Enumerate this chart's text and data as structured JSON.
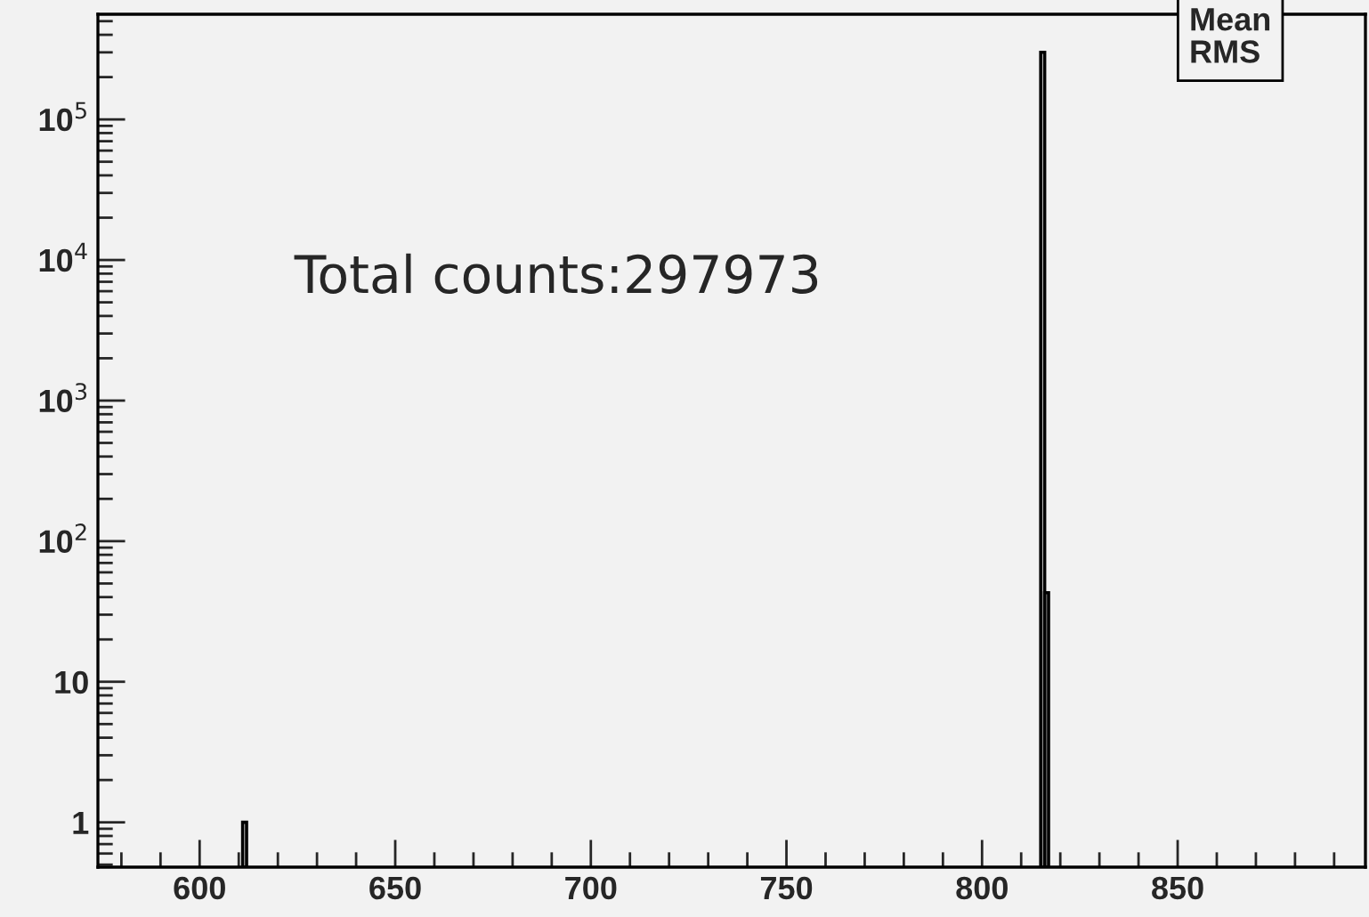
{
  "chart_data": {
    "type": "histogram",
    "bins": [
      611,
      612,
      815,
      816,
      817
    ],
    "values": [
      1,
      null,
      300000,
      43
    ],
    "color": "#000000",
    "log": "y",
    "xlim": [
      574,
      898
    ],
    "xticks": [
      600,
      650,
      700,
      750,
      800,
      850,
      {
        "value": 580,
        "label": null
      },
      {
        "value": 590,
        "label": null
      },
      {
        "value": 610,
        "label": null
      },
      {
        "value": 620,
        "label": null
      },
      {
        "value": 630,
        "label": null
      },
      {
        "value": 640,
        "label": null
      },
      {
        "value": 660,
        "label": null
      },
      {
        "value": 670,
        "label": null
      },
      {
        "value": 680,
        "label": null
      },
      {
        "value": 690,
        "label": null
      },
      {
        "value": 710,
        "label": null
      },
      {
        "value": 720,
        "label": null
      },
      {
        "value": 730,
        "label": null
      },
      {
        "value": 740,
        "label": null
      },
      {
        "value": 760,
        "label": null
      },
      {
        "value": 770,
        "label": null
      },
      {
        "value": 780,
        "label": null
      },
      {
        "value": 790,
        "label": null
      },
      {
        "value": 810,
        "label": null
      },
      {
        "value": 820,
        "label": null
      },
      {
        "value": 830,
        "label": null
      },
      {
        "value": 840,
        "label": null
      },
      {
        "value": 860,
        "label": null
      },
      {
        "value": 870,
        "label": null
      },
      {
        "value": 880,
        "label": null
      },
      {
        "value": 890,
        "label": null
      }
    ],
    "ylim": [
      0.48,
      560000
    ],
    "yticks": [
      1,
      10,
      {
        "value": 100,
        "label": "10$^{2}$"
      },
      {
        "value": 1000,
        "label": "10$^{3}$"
      },
      {
        "value": 10000,
        "label": "10$^{4}$"
      },
      {
        "value": 100000,
        "label": "10$^{5}$"
      }
    ],
    "grid": false,
    "legend": false,
    "annotations": [
      "Total counts:297973",
      "Mean\nRMS"
    ]
  }
}
